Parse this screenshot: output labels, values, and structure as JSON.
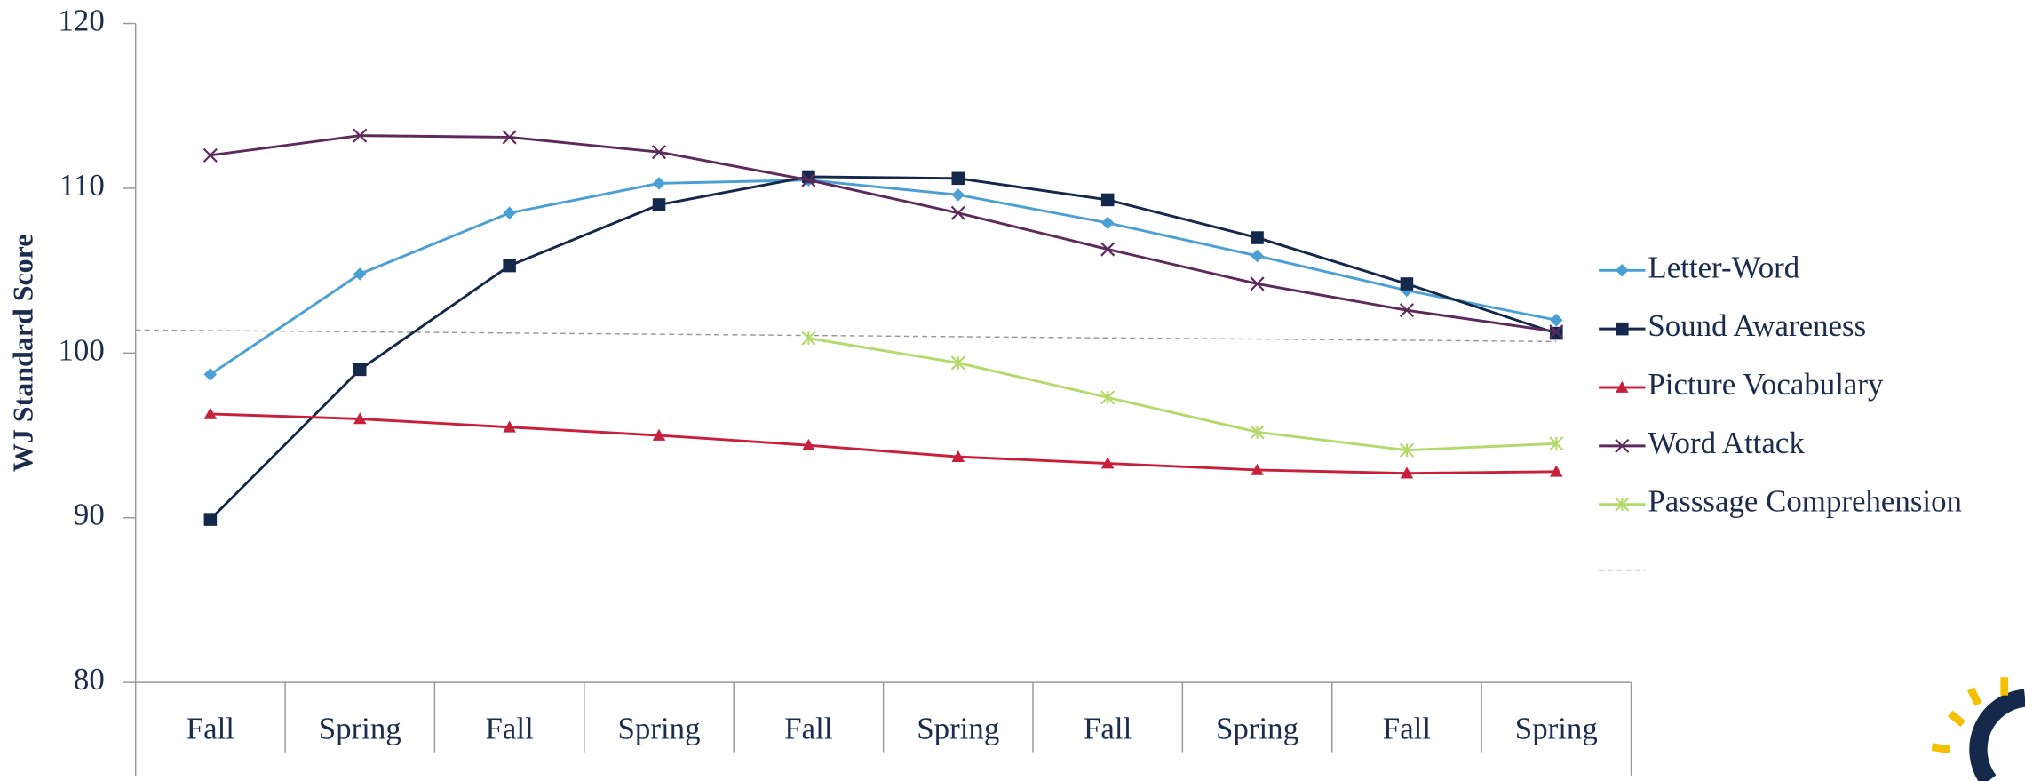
{
  "chart_data": {
    "type": "line",
    "y_label": "WJ  Standard  Score",
    "categories": [
      "Fall",
      "Spring",
      "Fall",
      "Spring",
      "Fall",
      "Spring",
      "Fall",
      "Spring",
      "Fall",
      "Spring"
    ],
    "ylim": [
      80,
      120
    ],
    "yticks": [
      80,
      90,
      100,
      110,
      120
    ],
    "series": [
      {
        "name": "Letter-Word",
        "color": "#4a9fd4",
        "marker": "diamond",
        "values": [
          98.7,
          104.8,
          108.5,
          110.3,
          110.5,
          109.6,
          107.9,
          105.9,
          103.8,
          102.0
        ]
      },
      {
        "name": "Sound Awareness",
        "color": "#13284b",
        "marker": "square",
        "values": [
          89.9,
          99.0,
          105.3,
          109.0,
          110.7,
          110.6,
          109.3,
          107.0,
          104.2,
          101.2
        ]
      },
      {
        "name": "Picture Vocabulary",
        "color": "#c8203a",
        "marker": "triangle",
        "values": [
          96.3,
          96.0,
          95.5,
          95.0,
          94.4,
          93.7,
          93.3,
          92.9,
          92.7,
          92.8
        ]
      },
      {
        "name": "Word Attack",
        "color": "#5e2a5e",
        "marker": "x",
        "values": [
          112.0,
          113.2,
          113.1,
          112.2,
          110.5,
          108.5,
          106.3,
          104.2,
          102.6,
          101.3
        ]
      },
      {
        "name": "Passsage Comprehension",
        "color": "#b5d96a",
        "marker": "star",
        "values": [
          null,
          null,
          null,
          null,
          100.9,
          99.4,
          97.3,
          95.2,
          94.1,
          94.5
        ]
      }
    ],
    "trend_line": {
      "color": "#999999",
      "values": [
        101.4,
        100.7
      ]
    }
  }
}
